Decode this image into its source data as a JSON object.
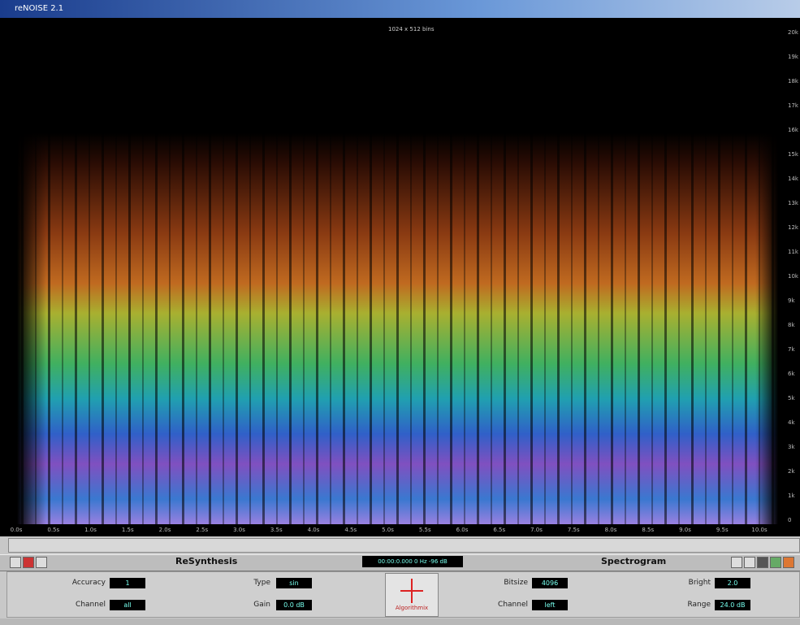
{
  "window": {
    "title": "reNOISE 2.1"
  },
  "spectrogram": {
    "header": "1024 x 512 bins",
    "time_labels": [
      "0.0s",
      "0.5s",
      "1.0s",
      "1.5s",
      "2.0s",
      "2.5s",
      "3.0s",
      "3.5s",
      "4.0s",
      "4.5s",
      "5.0s",
      "5.5s",
      "6.0s",
      "6.5s",
      "7.0s",
      "7.5s",
      "8.0s",
      "8.5s",
      "9.0s",
      "9.5s",
      "10.0s"
    ],
    "freq_labels": [
      "20k",
      "19k",
      "18k",
      "17k",
      "16k",
      "15k",
      "14k",
      "13k",
      "12k",
      "11k",
      "10k",
      "9k",
      "8k",
      "7k",
      "6k",
      "5k",
      "4k",
      "3k",
      "2k",
      "1k",
      "0"
    ]
  },
  "toolbar": {
    "left_title": "ReSynthesis",
    "readout": "00:00:0.000  0 Hz  -96 dB",
    "right_title": "Spectrogram"
  },
  "resynthesis": {
    "fields": [
      {
        "label": "Accuracy",
        "value": "1"
      },
      {
        "label": "Channel",
        "value": "all"
      },
      {
        "label": "Type",
        "value": "sin"
      },
      {
        "label": "Gain",
        "value": "0.0 dB"
      }
    ]
  },
  "logo": "Algorithmix",
  "spectrogram_settings": {
    "fields": [
      {
        "label": "Bitsize",
        "value": "4096"
      },
      {
        "label": "Channel",
        "value": "left"
      },
      {
        "label": "Bright",
        "value": "2.0"
      },
      {
        "label": "Range",
        "value": "24.0 dB"
      }
    ]
  }
}
